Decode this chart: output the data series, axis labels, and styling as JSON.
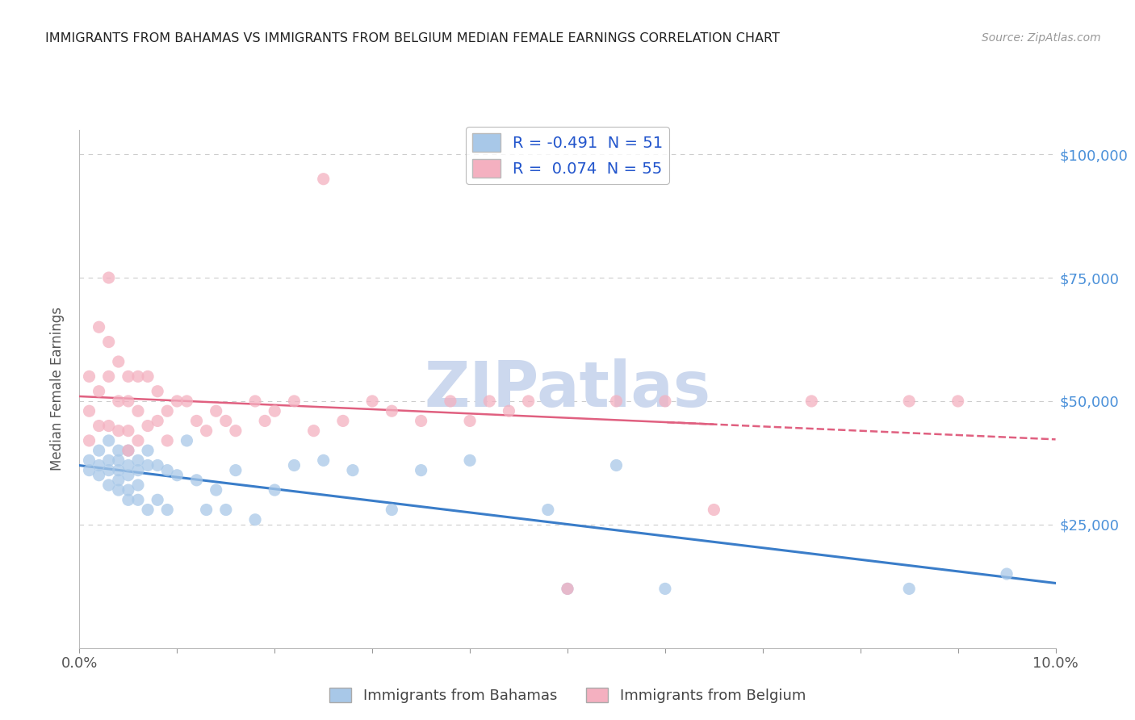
{
  "title": "IMMIGRANTS FROM BAHAMAS VS IMMIGRANTS FROM BELGIUM MEDIAN FEMALE EARNINGS CORRELATION CHART",
  "source": "Source: ZipAtlas.com",
  "ylabel": "Median Female Earnings",
  "xlim": [
    0.0,
    0.1
  ],
  "ylim": [
    0,
    105000
  ],
  "yticks": [
    0,
    25000,
    50000,
    75000,
    100000
  ],
  "ytick_labels": [
    "",
    "$25,000",
    "$50,000",
    "$75,000",
    "$100,000"
  ],
  "xticks": [
    0.0,
    0.01,
    0.02,
    0.03,
    0.04,
    0.05,
    0.06,
    0.07,
    0.08,
    0.09,
    0.1
  ],
  "bahamas_R": -0.491,
  "bahamas_N": 51,
  "belgium_R": 0.074,
  "belgium_N": 55,
  "bahamas_color": "#a8c8e8",
  "belgium_color": "#f4b0c0",
  "bahamas_line_color": "#3a7dc9",
  "belgium_line_color": "#e06080",
  "grid_color": "#cccccc",
  "title_color": "#222222",
  "axis_label_color": "#555555",
  "ytick_color": "#4a90d9",
  "xtick_color": "#555555",
  "watermark_color": "#ccd8ee",
  "watermark_text": "ZIPatlas",
  "background_color": "#ffffff",
  "bahamas_x": [
    0.001,
    0.001,
    0.002,
    0.002,
    0.002,
    0.003,
    0.003,
    0.003,
    0.003,
    0.004,
    0.004,
    0.004,
    0.004,
    0.004,
    0.005,
    0.005,
    0.005,
    0.005,
    0.005,
    0.006,
    0.006,
    0.006,
    0.006,
    0.007,
    0.007,
    0.007,
    0.008,
    0.008,
    0.009,
    0.009,
    0.01,
    0.011,
    0.012,
    0.013,
    0.014,
    0.015,
    0.016,
    0.018,
    0.02,
    0.022,
    0.025,
    0.028,
    0.032,
    0.035,
    0.04,
    0.048,
    0.05,
    0.055,
    0.06,
    0.085,
    0.095
  ],
  "bahamas_y": [
    38000,
    36000,
    40000,
    37000,
    35000,
    42000,
    38000,
    36000,
    33000,
    40000,
    38000,
    36000,
    34000,
    32000,
    40000,
    37000,
    35000,
    32000,
    30000,
    38000,
    36000,
    33000,
    30000,
    40000,
    37000,
    28000,
    37000,
    30000,
    36000,
    28000,
    35000,
    42000,
    34000,
    28000,
    32000,
    28000,
    36000,
    26000,
    32000,
    37000,
    38000,
    36000,
    28000,
    36000,
    38000,
    28000,
    12000,
    37000,
    12000,
    12000,
    15000
  ],
  "belgium_x": [
    0.001,
    0.001,
    0.001,
    0.002,
    0.002,
    0.002,
    0.003,
    0.003,
    0.003,
    0.003,
    0.004,
    0.004,
    0.004,
    0.005,
    0.005,
    0.005,
    0.005,
    0.006,
    0.006,
    0.006,
    0.007,
    0.007,
    0.008,
    0.008,
    0.009,
    0.009,
    0.01,
    0.011,
    0.012,
    0.013,
    0.014,
    0.015,
    0.016,
    0.018,
    0.019,
    0.02,
    0.022,
    0.024,
    0.025,
    0.027,
    0.03,
    0.032,
    0.035,
    0.038,
    0.04,
    0.042,
    0.044,
    0.046,
    0.05,
    0.055,
    0.06,
    0.065,
    0.075,
    0.085,
    0.09
  ],
  "belgium_y": [
    55000,
    48000,
    42000,
    65000,
    52000,
    45000,
    75000,
    62000,
    55000,
    45000,
    58000,
    50000,
    44000,
    55000,
    50000,
    44000,
    40000,
    55000,
    48000,
    42000,
    55000,
    45000,
    52000,
    46000,
    48000,
    42000,
    50000,
    50000,
    46000,
    44000,
    48000,
    46000,
    44000,
    50000,
    46000,
    48000,
    50000,
    44000,
    95000,
    46000,
    50000,
    48000,
    46000,
    50000,
    46000,
    50000,
    48000,
    50000,
    12000,
    50000,
    50000,
    28000,
    50000,
    50000,
    50000
  ]
}
